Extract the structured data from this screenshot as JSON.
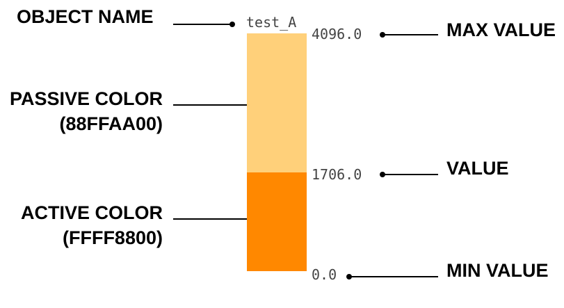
{
  "widget": {
    "object_name": "test_A",
    "max_value": "4096.0",
    "value": "1706.0",
    "min_value": "0.0",
    "value_fraction": 0.4165,
    "passive_color": "#FFD07A",
    "active_color": "#FF8800"
  },
  "annotations": {
    "object_name": "OBJECT NAME",
    "max_value": "MAX VALUE",
    "value": "VALUE",
    "min_value": "MIN VALUE",
    "passive_color_line1": "PASSIVE COLOR",
    "passive_color_line2": "(88FFAA00)",
    "active_color_line1": "ACTIVE COLOR",
    "active_color_line2": "(FFFF8800)"
  }
}
